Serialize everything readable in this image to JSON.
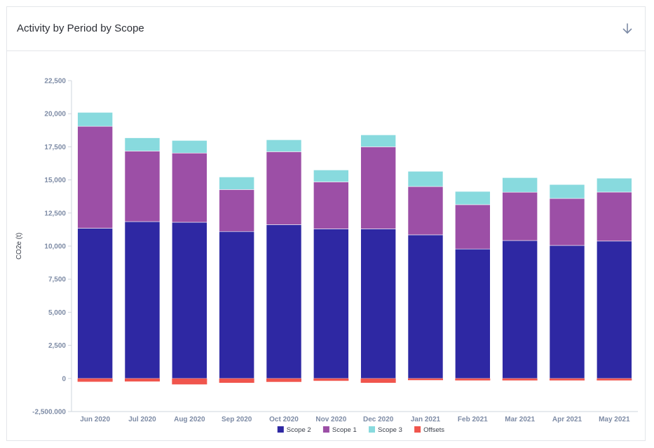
{
  "header": {
    "title": "Activity by Period by Scope",
    "download_icon": "arrow-down-icon"
  },
  "colors": {
    "scope2": "#2e28a3",
    "scope1": "#9c4fa6",
    "scope3": "#88dade",
    "offsets": "#f0554d",
    "axis_text": "#7d8ba5",
    "grid": "#e6e9ee"
  },
  "chart_data": {
    "type": "bar",
    "stacked": true,
    "categories": [
      "Jun 2020",
      "Jul 2020",
      "Aug 2020",
      "Sep 2020",
      "Oct 2020",
      "Nov 2020",
      "Dec 2020",
      "Jan 2021",
      "Feb 2021",
      "Mar 2021",
      "Apr 2021",
      "May 2021"
    ],
    "series": [
      {
        "name": "Scope 2",
        "key": "scope2",
        "values": [
          11350,
          11850,
          11800,
          11100,
          11620,
          11300,
          11300,
          10850,
          9780,
          10420,
          10050,
          10380
        ]
      },
      {
        "name": "Scope 1",
        "key": "scope1",
        "values": [
          7700,
          5330,
          5230,
          3170,
          5510,
          3550,
          6200,
          3650,
          3350,
          3650,
          3550,
          3700
        ]
      },
      {
        "name": "Scope 3",
        "key": "scope3",
        "values": [
          1050,
          1000,
          950,
          950,
          900,
          900,
          900,
          1150,
          1000,
          1100,
          1050,
          1050
        ]
      },
      {
        "name": "Offsets",
        "key": "offsets",
        "values": [
          -250,
          -230,
          -450,
          -330,
          -260,
          -180,
          -330,
          -130,
          -150,
          -150,
          -150,
          -150
        ]
      }
    ],
    "ylabel": "CO2e (t)",
    "xlabel": "",
    "ylim": [
      -2500,
      22500
    ],
    "yticks": [
      -2500,
      0,
      2500,
      5000,
      7500,
      10000,
      12500,
      15000,
      17500,
      20000,
      22500
    ],
    "ytick_labels": [
      "-2,500.000",
      "0",
      "2,500",
      "5,000",
      "7,500",
      "10,000",
      "12,500",
      "15,000",
      "17,500",
      "20,000",
      "22,500"
    ],
    "legend_position": "bottom-center",
    "grid": false
  }
}
